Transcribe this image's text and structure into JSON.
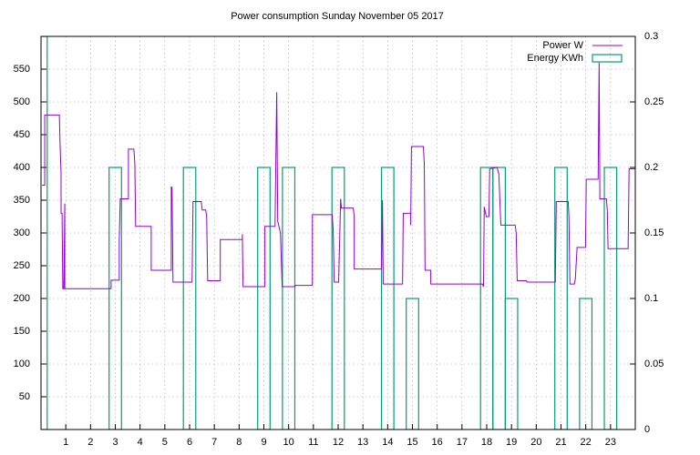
{
  "chart_data": {
    "type": "line",
    "title": "Power consumption Sunday November 05 2017",
    "xlim": [
      0,
      24
    ],
    "xticks": [
      1,
      2,
      3,
      4,
      5,
      6,
      7,
      8,
      9,
      10,
      11,
      12,
      13,
      14,
      15,
      16,
      17,
      18,
      19,
      20,
      21,
      22,
      23
    ],
    "ylim": [
      0,
      600
    ],
    "yticks": [
      50,
      100,
      150,
      200,
      250,
      300,
      350,
      400,
      450,
      500,
      550
    ],
    "y2lim": [
      0,
      0.3
    ],
    "y2ticks": [
      0,
      0.05,
      0.1,
      0.15,
      0.2,
      0.25,
      0.3
    ],
    "grid": true,
    "legend": "top-right",
    "series": [
      {
        "name": "Power W",
        "color": "#9400d3",
        "type": "line",
        "x": [
          0.04,
          0.15,
          0.15,
          0.74,
          0.77,
          0.81,
          0.81,
          0.85,
          0.88,
          0.92,
          0.96,
          0.96,
          2.83,
          2.83,
          3.16,
          3.16,
          3.2,
          3.53,
          3.53,
          3.75,
          3.79,
          3.82,
          4.45,
          4.45,
          5.26,
          5.26,
          5.29,
          5.33,
          6.1,
          6.14,
          6.47,
          6.51,
          6.65,
          6.69,
          6.73,
          7.24,
          7.24,
          8.13,
          8.13,
          8.16,
          9.04,
          9.04,
          9.45,
          9.52,
          9.56,
          9.67,
          9.74,
          10.26,
          10.26,
          10.96,
          10.96,
          11.76,
          11.8,
          11.84,
          12.02,
          12.1,
          12.13,
          12.61,
          12.65,
          12.65,
          13.75,
          13.79,
          13.82,
          14.6,
          14.63,
          14.93,
          14.93,
          14.96,
          15.44,
          15.48,
          15.51,
          15.74,
          15.74,
          17.83,
          17.87,
          17.9,
          17.98,
          18.09,
          18.12,
          18.42,
          18.49,
          18.57,
          19.15,
          19.19,
          19.23,
          19.6,
          19.63,
          20.77,
          20.81,
          21.29,
          21.32,
          21.36,
          21.54,
          21.58,
          21.65,
          21.99,
          22.02,
          22.5,
          22.54,
          22.57,
          22.83,
          22.87,
          22.9,
          23.71,
          23.75,
          24.0
        ],
        "values": [
          373,
          373,
          480,
          480,
          435,
          390,
          330,
          330,
          215,
          215,
          345,
          215,
          215,
          228,
          228,
          290,
          352,
          352,
          428,
          428,
          405,
          310,
          310,
          243,
          243,
          370,
          370,
          225,
          225,
          348,
          348,
          335,
          335,
          325,
          227,
          227,
          290,
          290,
          298,
          218,
          218,
          310,
          310,
          515,
          318,
          300,
          218,
          218,
          220,
          220,
          328,
          328,
          305,
          225,
          225,
          352,
          338,
          338,
          325,
          245,
          245,
          350,
          222,
          222,
          330,
          330,
          312,
          432,
          432,
          405,
          243,
          243,
          222,
          222,
          218,
          340,
          325,
          325,
          398,
          400,
          390,
          312,
          312,
          300,
          227,
          227,
          225,
          225,
          348,
          348,
          325,
          222,
          222,
          230,
          278,
          278,
          382,
          382,
          560,
          352,
          352,
          335,
          276,
          276,
          398,
          398
        ]
      },
      {
        "name": "Energy KWh",
        "color": "#009e73",
        "type": "boxes",
        "axis": "y2",
        "x": [
          0,
          3,
          6,
          9,
          10,
          12,
          14,
          15,
          18,
          18.5,
          19,
          21,
          22,
          23
        ],
        "values": [
          0.3,
          0.2,
          0.2,
          0.2,
          0.2,
          0.2,
          0.2,
          0.1,
          0.2,
          0.2,
          0.1,
          0.2,
          0.1,
          0.2
        ]
      }
    ]
  }
}
